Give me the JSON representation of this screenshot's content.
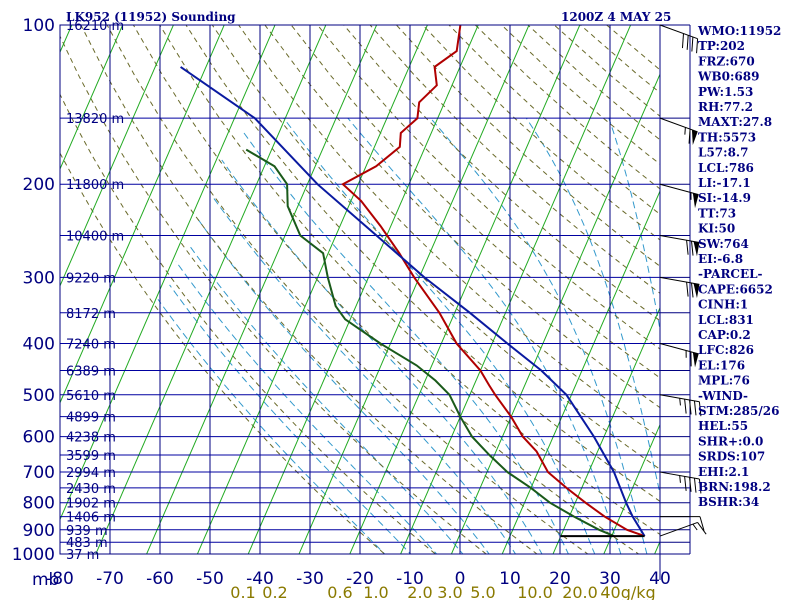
{
  "header": {
    "station": "LK952 (11952) Sounding",
    "valid_time": "1200Z  4 MAY 25"
  },
  "stats": [
    "WMO:11952",
    "TP:202",
    "FRZ:670",
    "WB0:689",
    "PW:1.53",
    "RH:77.2",
    "MAXT:27.8",
    "TH:5573",
    "L57:8.7",
    "LCL:786",
    "LI:-17.1",
    "SI:-14.9",
    "TT:73",
    "KI:50",
    "SW:764",
    "EI:-6.8",
    "-PARCEL-",
    "CAPE:6652",
    "CINH:1",
    "LCL:831",
    "CAP:0.2",
    "LFC:826",
    "EL:176",
    "MPL:76",
    "-WIND-",
    "STM:285/26",
    "HEL:55",
    "SHR+:0.0",
    "SRDS:107",
    "EHI:2.1",
    "BRN:198.2",
    "BSHR:34"
  ],
  "colors": {
    "frame": "#000080",
    "isobar": "#0000a0",
    "isotherm": "#22aa22",
    "dry_adiabat": "#6a6a2a",
    "moist_adiabat": "#3399cc",
    "temperature": "#b00000",
    "dewpoint": "#1a5a1a",
    "parcel": "#0a1aa0",
    "mixing_ratio_label": "#8a7a00"
  },
  "chart_data": {
    "type": "line",
    "diagram": "skew-T log-p",
    "pressure_axis_label": "mb",
    "pressure_ticks": [
      100,
      200,
      300,
      400,
      500,
      600,
      700,
      800,
      900,
      1000
    ],
    "temperature_ticks": [
      -80,
      -70,
      -60,
      -50,
      -40,
      -30,
      -20,
      -10,
      0,
      10,
      20,
      30,
      40
    ],
    "temperature_tick_labels": [
      "-80",
      "-70",
      "-60",
      "-50",
      "-40",
      "-30",
      "-20",
      "-10",
      "0",
      "10",
      "20",
      "30",
      "40"
    ],
    "height_labels": [
      {
        "p": 100,
        "text": "16210 m"
      },
      {
        "p": 150,
        "text": "13820 m"
      },
      {
        "p": 200,
        "text": "11800 m"
      },
      {
        "p": 250,
        "text": "10400 m"
      },
      {
        "p": 300,
        "text": "9220 m"
      },
      {
        "p": 350,
        "text": "8172 m"
      },
      {
        "p": 400,
        "text": "7240 m"
      },
      {
        "p": 450,
        "text": "6389 m"
      },
      {
        "p": 500,
        "text": "5610 m"
      },
      {
        "p": 550,
        "text": "4899 m"
      },
      {
        "p": 600,
        "text": "4238 m"
      },
      {
        "p": 650,
        "text": "3599 m"
      },
      {
        "p": 700,
        "text": "2994 m"
      },
      {
        "p": 750,
        "text": "2430 m"
      },
      {
        "p": 800,
        "text": "1902 m"
      },
      {
        "p": 850,
        "text": "1406 m"
      },
      {
        "p": 900,
        "text": "939 m"
      },
      {
        "p": 950,
        "text": "483 m"
      },
      {
        "p": 1000,
        "text": "37 m"
      }
    ],
    "mixing_ratio_labels": [
      "0.1",
      "0.2",
      "0.6",
      "1.0",
      "2.0",
      "3.0",
      "5.0",
      "10.0",
      "20.0",
      "40g/kg"
    ],
    "mixing_ratio_values": [
      0.1,
      0.2,
      0.6,
      1.0,
      2.0,
      3.0,
      5.0,
      10.0,
      20.0,
      40.0
    ],
    "series": [
      {
        "key": "temperature",
        "points": [
          {
            "p": 100,
            "t": -53.5
          },
          {
            "p": 112,
            "t": -52
          },
          {
            "p": 120,
            "t": -55
          },
          {
            "p": 130,
            "t": -53
          },
          {
            "p": 140,
            "t": -55
          },
          {
            "p": 150,
            "t": -54
          },
          {
            "p": 160,
            "t": -56
          },
          {
            "p": 170,
            "t": -55
          },
          {
            "p": 185,
            "t": -58
          },
          {
            "p": 200,
            "t": -63
          },
          {
            "p": 215,
            "t": -58
          },
          {
            "p": 240,
            "t": -52
          },
          {
            "p": 270,
            "t": -46
          },
          {
            "p": 300,
            "t": -41
          },
          {
            "p": 350,
            "t": -33
          },
          {
            "p": 400,
            "t": -27
          },
          {
            "p": 450,
            "t": -20
          },
          {
            "p": 480,
            "t": -17
          },
          {
            "p": 500,
            "t": -15
          },
          {
            "p": 550,
            "t": -10
          },
          {
            "p": 600,
            "t": -6
          },
          {
            "p": 640,
            "t": -2
          },
          {
            "p": 700,
            "t": 2
          },
          {
            "p": 750,
            "t": 7
          },
          {
            "p": 800,
            "t": 12
          },
          {
            "p": 850,
            "t": 17
          },
          {
            "p": 900,
            "t": 22.5
          },
          {
            "p": 925,
            "t": 26.5
          }
        ]
      },
      {
        "key": "dewpoint",
        "points": [
          {
            "p": 172,
            "t": -85
          },
          {
            "p": 185,
            "t": -78
          },
          {
            "p": 200,
            "t": -74
          },
          {
            "p": 220,
            "t": -72
          },
          {
            "p": 250,
            "t": -67
          },
          {
            "p": 270,
            "t": -61
          },
          {
            "p": 300,
            "t": -58
          },
          {
            "p": 340,
            "t": -54
          },
          {
            "p": 360,
            "t": -51
          },
          {
            "p": 400,
            "t": -42
          },
          {
            "p": 440,
            "t": -33
          },
          {
            "p": 470,
            "t": -28
          },
          {
            "p": 500,
            "t": -24
          },
          {
            "p": 550,
            "t": -20
          },
          {
            "p": 600,
            "t": -16
          },
          {
            "p": 650,
            "t": -11
          },
          {
            "p": 700,
            "t": -6
          },
          {
            "p": 750,
            "t": 0
          },
          {
            "p": 800,
            "t": 5
          },
          {
            "p": 850,
            "t": 11
          },
          {
            "p": 900,
            "t": 17
          },
          {
            "p": 925,
            "t": 20.5
          }
        ]
      },
      {
        "key": "parcel",
        "points": [
          {
            "p": 120,
            "t": -105
          },
          {
            "p": 150,
            "t": -86
          },
          {
            "p": 200,
            "t": -68
          },
          {
            "p": 250,
            "t": -52
          },
          {
            "p": 300,
            "t": -39
          },
          {
            "p": 350,
            "t": -27
          },
          {
            "p": 400,
            "t": -17
          },
          {
            "p": 450,
            "t": -8
          },
          {
            "p": 500,
            "t": -1
          },
          {
            "p": 600,
            "t": 8
          },
          {
            "p": 700,
            "t": 15
          },
          {
            "p": 800,
            "t": 20
          },
          {
            "p": 850,
            "t": 22.5
          },
          {
            "p": 925,
            "t": 26.5
          }
        ]
      }
    ],
    "surface_marker": {
      "p": 925,
      "t_from": 10,
      "t_to": 26.5
    },
    "wind_barbs": [
      {
        "p": 100,
        "dir": 290,
        "spd": 40
      },
      {
        "p": 150,
        "dir": 290,
        "spd": 65
      },
      {
        "p": 200,
        "dir": 285,
        "spd": 55
      },
      {
        "p": 250,
        "dir": 280,
        "spd": 70
      },
      {
        "p": 300,
        "dir": 280,
        "spd": 70
      },
      {
        "p": 400,
        "dir": 285,
        "spd": 65
      },
      {
        "p": 500,
        "dir": 280,
        "spd": 45
      },
      {
        "p": 700,
        "dir": 280,
        "spd": 45
      },
      {
        "p": 850,
        "dir": 270,
        "spd": 10
      },
      {
        "p": 925,
        "dir": 250,
        "spd": 15
      }
    ]
  }
}
